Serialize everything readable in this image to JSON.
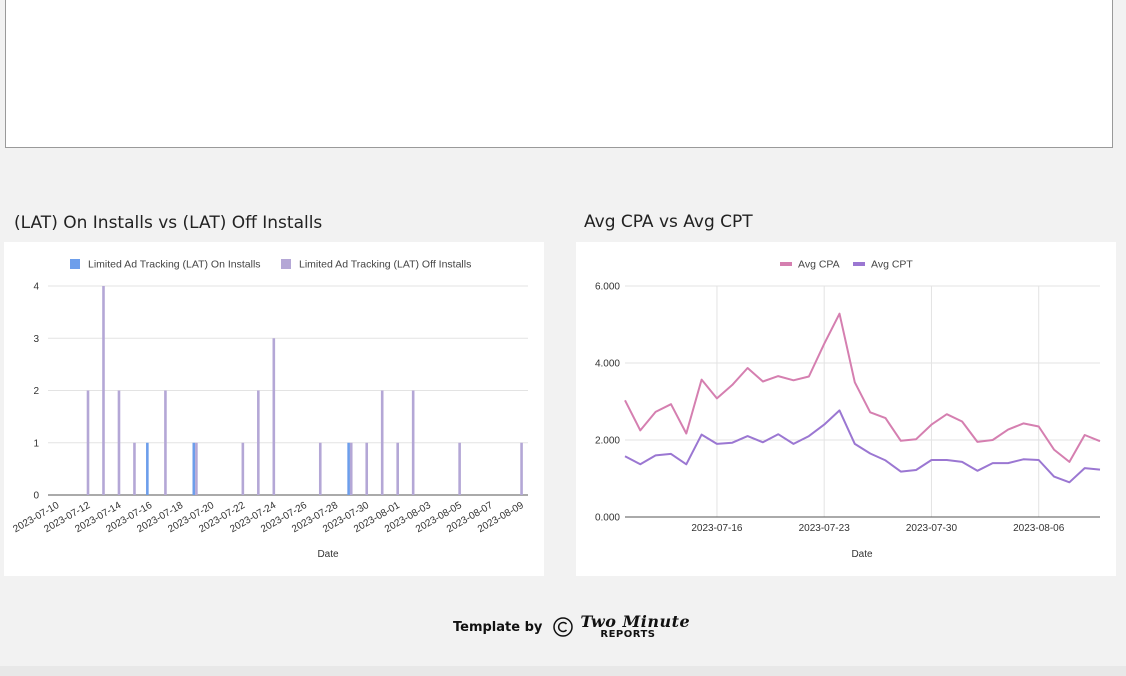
{
  "chart_data": [
    {
      "type": "bar",
      "title": "(LAT) On Installs vs (LAT) Off Installs",
      "xlabel": "Date",
      "ylabel": "",
      "ylim": [
        0,
        4
      ],
      "yticks": [
        "0",
        "1",
        "2",
        "3",
        "4"
      ],
      "tick_labels": [
        "2023-07-10",
        "2023-07-12",
        "2023-07-14",
        "2023-07-16",
        "2023-07-18",
        "2023-07-20",
        "2023-07-22",
        "2023-07-24",
        "2023-07-26",
        "2023-07-28",
        "2023-07-30",
        "2023-08-01",
        "2023-08-03",
        "2023-08-05",
        "2023-08-07",
        "2023-08-09"
      ],
      "categories": [
        "2023-07-10",
        "2023-07-11",
        "2023-07-12",
        "2023-07-13",
        "2023-07-14",
        "2023-07-15",
        "2023-07-16",
        "2023-07-17",
        "2023-07-18",
        "2023-07-19",
        "2023-07-20",
        "2023-07-21",
        "2023-07-22",
        "2023-07-23",
        "2023-07-24",
        "2023-07-25",
        "2023-07-26",
        "2023-07-27",
        "2023-07-28",
        "2023-07-29",
        "2023-07-30",
        "2023-07-31",
        "2023-08-01",
        "2023-08-02",
        "2023-08-03",
        "2023-08-04",
        "2023-08-05",
        "2023-08-06",
        "2023-08-07",
        "2023-08-08",
        "2023-08-09"
      ],
      "series": [
        {
          "name": "Limited Ad Tracking (LAT) On Installs",
          "color": "#6d9eeb",
          "values": [
            0,
            0,
            0,
            0,
            0,
            0,
            1,
            0,
            0,
            1,
            0,
            0,
            0,
            0,
            0,
            0,
            0,
            0,
            0,
            1,
            0,
            0,
            0,
            0,
            0,
            0,
            0,
            0,
            0,
            0,
            0
          ]
        },
        {
          "name": "Limited Ad Tracking (LAT) Off Installs",
          "color": "#b4a7d6",
          "values": [
            0,
            0,
            2,
            4,
            2,
            1,
            0,
            2,
            0,
            1,
            0,
            0,
            1,
            2,
            3,
            0,
            0,
            1,
            0,
            1,
            1,
            2,
            1,
            2,
            0,
            0,
            1,
            0,
            0,
            0,
            1
          ]
        }
      ]
    },
    {
      "type": "line",
      "title": "Avg CPA vs Avg CPT",
      "xlabel": "Date",
      "ylabel": "",
      "ylim": [
        0,
        6
      ],
      "yticks": [
        "0.000",
        "2.000",
        "4.000",
        "6.000"
      ],
      "x_start": "2023-07-10",
      "x_end": "2023-08-09",
      "tick_labels": [
        "2023-07-16",
        "2023-07-23",
        "2023-07-30",
        "2023-08-06"
      ],
      "series": [
        {
          "name": "Avg CPA",
          "color": "#d57fb0",
          "values": [
            3.03,
            2.25,
            2.73,
            2.93,
            2.17,
            3.57,
            3.08,
            3.43,
            3.87,
            3.52,
            3.66,
            3.55,
            3.65,
            4.5,
            5.28,
            3.5,
            2.72,
            2.57,
            1.98,
            2.02,
            2.4,
            2.67,
            2.48,
            1.95,
            2.0,
            2.27,
            2.43,
            2.35,
            1.75,
            1.43,
            2.13,
            1.97
          ]
        },
        {
          "name": "Avg CPT",
          "color": "#9b77d2",
          "values": [
            1.58,
            1.37,
            1.6,
            1.64,
            1.37,
            2.14,
            1.9,
            1.93,
            2.1,
            1.94,
            2.15,
            1.9,
            2.1,
            2.4,
            2.77,
            1.9,
            1.65,
            1.47,
            1.18,
            1.22,
            1.48,
            1.48,
            1.43,
            1.2,
            1.4,
            1.4,
            1.5,
            1.48,
            1.05,
            0.9,
            1.27,
            1.23
          ]
        }
      ]
    }
  ],
  "footer": {
    "label": "Template by",
    "brand_line1": "Two Minute",
    "brand_line2": "REPORTS",
    "copyright_symbol": "©"
  }
}
